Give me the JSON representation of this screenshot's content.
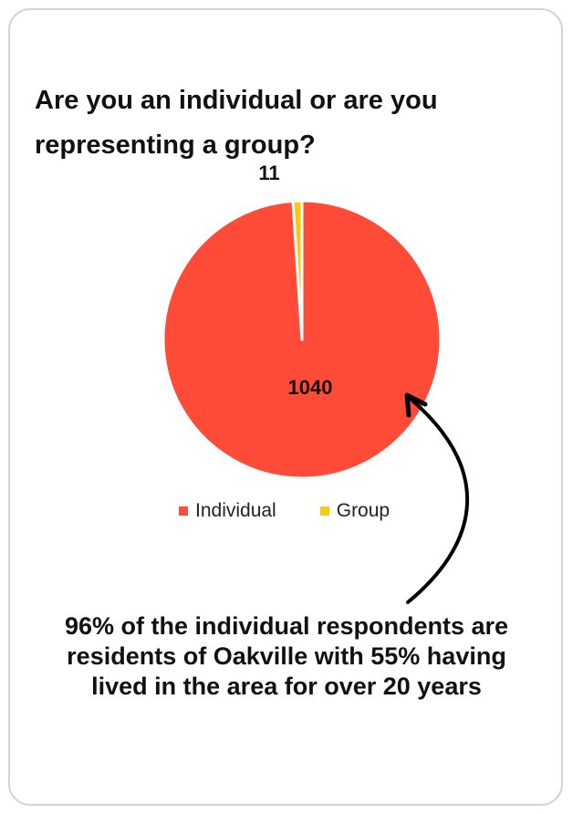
{
  "chart_data": {
    "type": "pie",
    "title": "Are you an individual or are you representing a group?",
    "categories": [
      "Individual",
      "Group"
    ],
    "values": [
      1040,
      11
    ],
    "data_labels": [
      "1040",
      "11"
    ],
    "colors": [
      "#ff4b38",
      "#f7c913"
    ],
    "legend": {
      "placement": "bottom",
      "entries": [
        "Individual",
        "Group"
      ]
    }
  },
  "annotation": {
    "text": "96% of the individual respondents are residents of Oakville with 55% having lived in the area for over 20 years"
  }
}
